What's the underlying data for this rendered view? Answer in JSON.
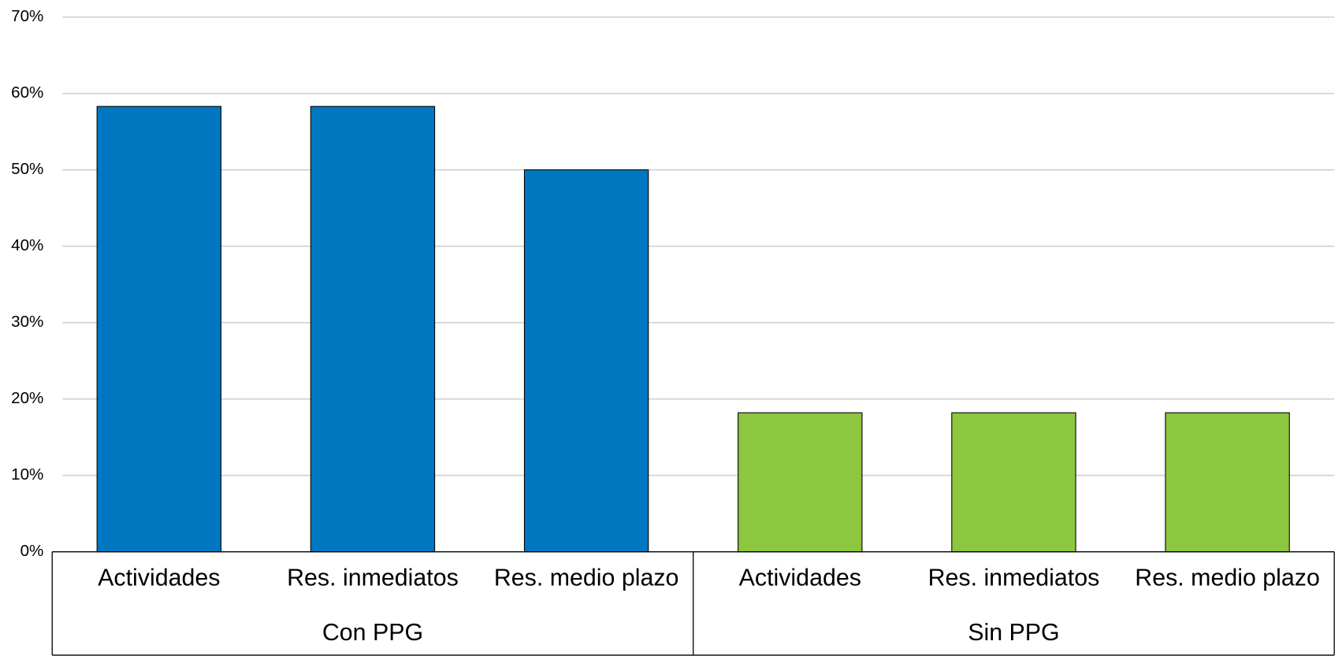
{
  "chart_data": {
    "type": "bar",
    "groups": [
      {
        "name": "Con PPG",
        "color": "#0077c0",
        "categories": [
          "Actividades",
          "Res. inmediatos",
          "Res. medio plazo"
        ],
        "values": [
          58.3,
          58.3,
          50
        ]
      },
      {
        "name": "Sin PPG",
        "color": "#8dc63f",
        "categories": [
          "Actividades",
          "Res. inmediatos",
          "Res. medio plazo"
        ],
        "values": [
          18.2,
          18.2,
          18.2
        ]
      }
    ],
    "ylim": [
      0,
      70
    ],
    "yticks": [
      {
        "value": 0,
        "label": "0%"
      },
      {
        "value": 10,
        "label": "10%"
      },
      {
        "value": 20,
        "label": "20%"
      },
      {
        "value": 30,
        "label": "30%"
      },
      {
        "value": 40,
        "label": "40%"
      },
      {
        "value": 50,
        "label": "50%"
      },
      {
        "value": 60,
        "label": "60%"
      },
      {
        "value": 70,
        "label": "70%"
      }
    ],
    "grid": true
  }
}
